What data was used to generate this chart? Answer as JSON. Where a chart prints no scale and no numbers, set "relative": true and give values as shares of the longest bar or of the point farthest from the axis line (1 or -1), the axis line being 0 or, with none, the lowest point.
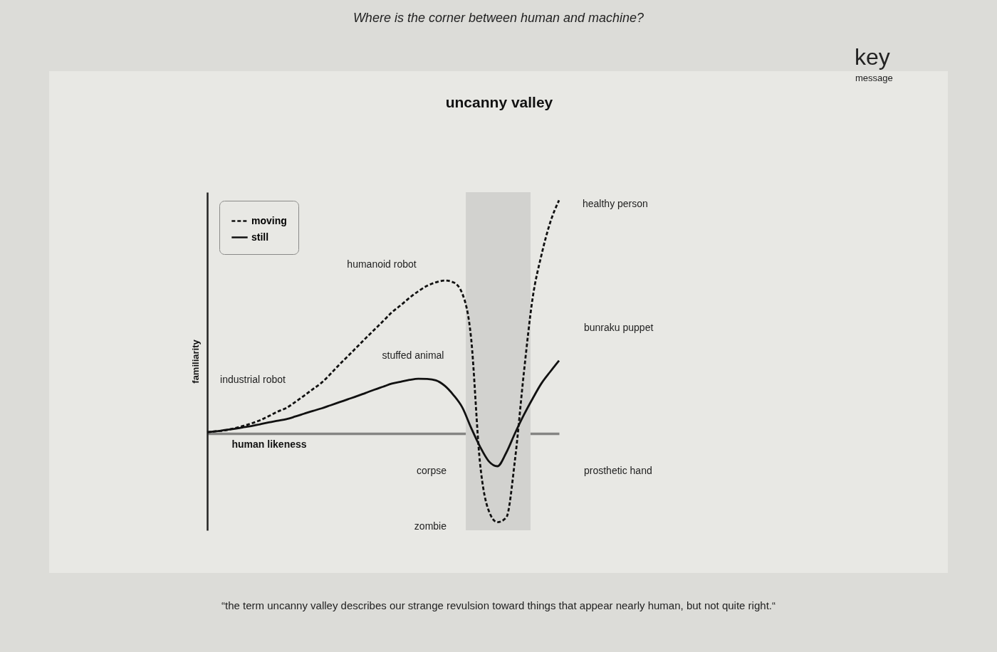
{
  "chart_data": {
    "type": "line",
    "title": "uncanny valley",
    "xlabel": "human likeness",
    "ylabel": "familiarity",
    "relative": true,
    "legend": "top left",
    "marker": "none",
    "categories": [
      null,
      null,
      null,
      null,
      null,
      null,
      null,
      null,
      null,
      null,
      null,
      null,
      null,
      null,
      null,
      null,
      null,
      null,
      null,
      null,
      null,
      null,
      null,
      null,
      null,
      null,
      null,
      null,
      null,
      null,
      null,
      null,
      null,
      null,
      null,
      null,
      null,
      null,
      null,
      null,
      null
    ],
    "series": [
      {
        "name": "moving",
        "color": "#111111",
        "line_style": "dashed",
        "values": [
          0.006,
          0.01,
          0.014,
          0.022,
          0.032,
          0.043,
          0.057,
          0.075,
          0.094,
          0.11,
          0.135,
          0.162,
          0.19,
          0.218,
          0.255,
          0.295,
          0.332,
          0.37,
          0.408,
          0.445,
          0.482,
          0.52,
          0.55,
          0.582,
          0.61,
          0.633,
          0.648,
          0.656,
          0.648,
          0.6,
          0.41,
          -0.12,
          -0.33,
          -0.38,
          -0.36,
          -0.11,
          0.26,
          0.581,
          0.765,
          0.905,
          1
        ]
      },
      {
        "name": "still",
        "color": "#111111",
        "line_style": "solid",
        "values": [
          0.006,
          0.01,
          0.015,
          0.02,
          0.026,
          0.032,
          0.04,
          0.048,
          0.055,
          0.062,
          0.073,
          0.085,
          0.097,
          0.108,
          0.121,
          0.134,
          0.147,
          0.16,
          0.174,
          0.188,
          0.201,
          0.214,
          0.222,
          0.23,
          0.235,
          0.234,
          0.228,
          0.205,
          0.165,
          0.112,
          0.025,
          -0.055,
          -0.118,
          -0.14,
          -0.082,
          0.002,
          0.08,
          0.15,
          0.215,
          0.265,
          0.313
        ]
      }
    ],
    "annotations": [
      "Where is the corner between human and machine?",
      "key",
      "message",
      "“the term uncanny valley describes our strange revulsion toward things that appear nearly human, but not quite right.“",
      "healthy person",
      "humanoid robot",
      "stuffed animal",
      "industrial robot",
      "bunraku puppet",
      "corpse",
      "prosthetic hand",
      "zombie"
    ]
  }
}
